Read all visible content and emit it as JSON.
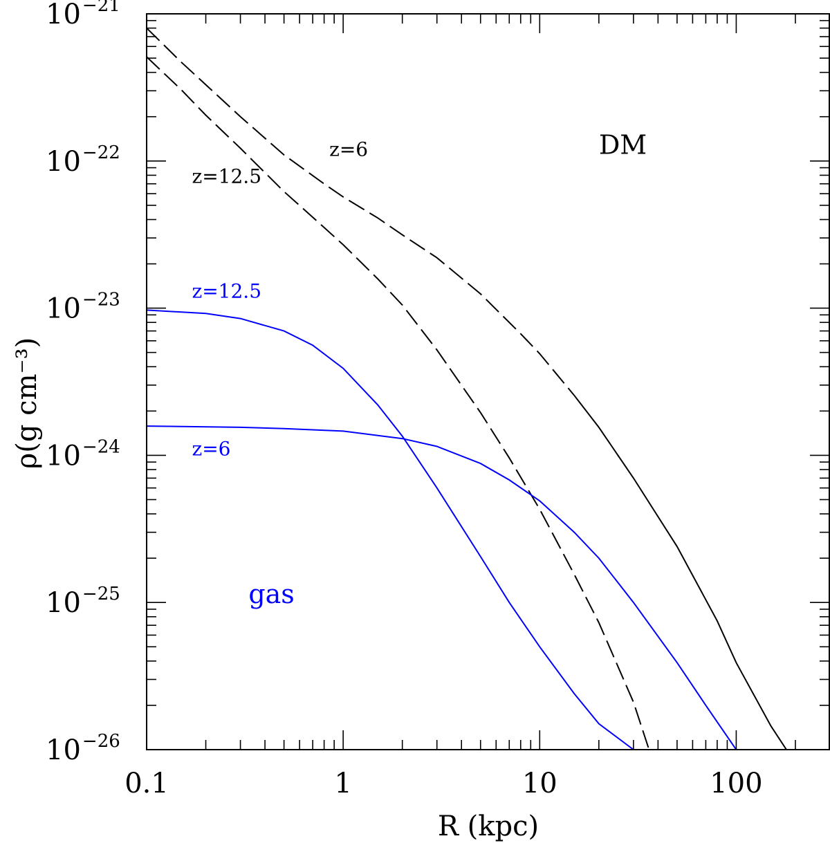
{
  "chart_data": {
    "type": "line",
    "xlabel": "R (kpc)",
    "ylabel": "ρ(g cm⁻³)",
    "x_scale": "log",
    "y_scale": "log",
    "xlim": [
      0.1,
      300
    ],
    "ylim": [
      1e-26,
      1e-21
    ],
    "x_ticks": [
      {
        "value": 0.1,
        "label": "0.1"
      },
      {
        "value": 1,
        "label": "1"
      },
      {
        "value": 10,
        "label": "10"
      },
      {
        "value": 100,
        "label": "100"
      }
    ],
    "y_ticks": [
      {
        "value": 1e-21,
        "base": "10",
        "exp": "−21"
      },
      {
        "value": 1e-22,
        "base": "10",
        "exp": "−22"
      },
      {
        "value": 1e-23,
        "base": "10",
        "exp": "−23"
      },
      {
        "value": 1e-24,
        "base": "10",
        "exp": "−24"
      },
      {
        "value": 1e-25,
        "base": "10",
        "exp": "−25"
      },
      {
        "value": 1e-26,
        "base": "10",
        "exp": "−26"
      }
    ],
    "colors": {
      "dm": "#000000",
      "gas": "#0000ff"
    },
    "series": [
      {
        "id": "dm-z6",
        "group": "DM",
        "style": "dashed-to-solid",
        "color": "#000000",
        "x": [
          0.1,
          0.15,
          0.2,
          0.3,
          0.5,
          0.8,
          1.0,
          1.5,
          2,
          3,
          5,
          8,
          10,
          15,
          20,
          30,
          50,
          80,
          100,
          150,
          180
        ],
        "y": [
          8e-22,
          4.7e-22,
          3.3e-22,
          2e-22,
          1.1e-22,
          7e-23,
          5.7e-23,
          4.1e-23,
          3.15e-23,
          2.2e-23,
          1.25e-23,
          6.7e-24,
          4.9e-24,
          2.55e-24,
          1.55e-24,
          7e-25,
          2.4e-25,
          7.5e-26,
          3.9e-26,
          1.45e-26,
          1e-26
        ]
      },
      {
        "id": "dm-z12.5",
        "group": "DM",
        "style": "dashed",
        "color": "#000000",
        "x": [
          0.1,
          0.15,
          0.2,
          0.3,
          0.5,
          0.7,
          1.0,
          1.5,
          2,
          3,
          5,
          7,
          10,
          15,
          20,
          30,
          36
        ],
        "y": [
          5.1e-22,
          3.05e-22,
          2.05e-22,
          1.22e-22,
          6.2e-23,
          4.15e-23,
          2.7e-23,
          1.58e-23,
          1.05e-23,
          5.2e-24,
          1.95e-24,
          9.6e-25,
          4.3e-25,
          1.55e-25,
          7.3e-26,
          2.1e-26,
          1e-26
        ]
      },
      {
        "id": "gas-z12.5",
        "group": "gas",
        "style": "solid",
        "color": "#0000ff",
        "x": [
          0.1,
          0.2,
          0.3,
          0.5,
          0.7,
          1.0,
          1.5,
          2,
          3,
          5,
          7,
          10,
          15,
          20,
          30
        ],
        "y": [
          9.7e-24,
          9.2e-24,
          8.5e-24,
          7e-24,
          5.6e-24,
          3.9e-24,
          2.2e-24,
          1.35e-24,
          6e-25,
          2.05e-25,
          1e-25,
          5e-26,
          2.4e-26,
          1.5e-26,
          1e-26
        ]
      },
      {
        "id": "gas-z6",
        "group": "gas",
        "style": "solid",
        "color": "#0000ff",
        "x": [
          0.1,
          0.3,
          0.5,
          1.0,
          2,
          3,
          5,
          7,
          10,
          15,
          20,
          30,
          50,
          70,
          100
        ],
        "y": [
          1.58e-24,
          1.55e-24,
          1.52e-24,
          1.46e-24,
          1.3e-24,
          1.15e-24,
          8.8e-25,
          6.8e-25,
          4.9e-25,
          3e-25,
          2e-25,
          1e-25,
          3.9e-26,
          2e-26,
          1e-26
        ]
      }
    ],
    "annotations": [
      {
        "id": "dm-z6-label",
        "text": "z=6",
        "x": 0.85,
        "y": 1.08e-22,
        "color": "#000000",
        "size": "small"
      },
      {
        "id": "dm-z12-label",
        "text": "z=12.5",
        "x": 0.17,
        "y": 7.1e-23,
        "color": "#000000",
        "size": "small"
      },
      {
        "id": "dm-label",
        "text": "DM",
        "x": 20,
        "y": 1.12e-22,
        "color": "#000000",
        "size": "big"
      },
      {
        "id": "gas-z12-label",
        "text": "z=12.5",
        "x": 0.17,
        "y": 1.18e-23,
        "color": "#0000ff",
        "size": "small"
      },
      {
        "id": "gas-z6-label",
        "text": "z=6",
        "x": 0.17,
        "y": 1e-24,
        "color": "#0000ff",
        "size": "small"
      },
      {
        "id": "gas-label",
        "text": "gas",
        "x": 0.33,
        "y": 9.9e-26,
        "color": "#0000ff",
        "size": "big"
      }
    ]
  }
}
